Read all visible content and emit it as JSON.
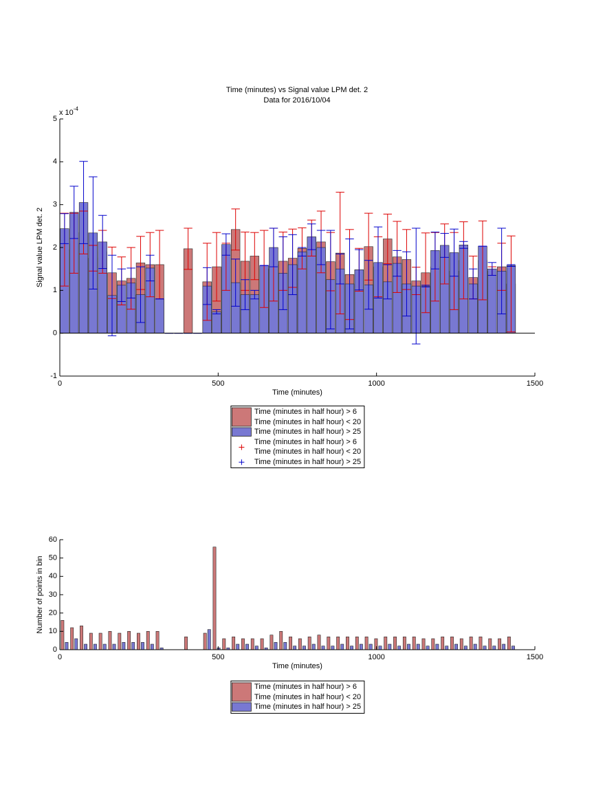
{
  "chart_data": [
    {
      "type": "bar",
      "barmode": "overlay",
      "title": "Time (minutes) vs Signal value LPM det. 2",
      "subtitle": "Data for 2016/10/04",
      "xlabel": "Time (minutes)",
      "ylabel": "Signal value LPM det. 2",
      "y_scale_label": "x 10",
      "y_scale_exponent": "-4",
      "x": [
        15,
        45,
        75,
        105,
        135,
        165,
        195,
        225,
        255,
        285,
        315,
        345,
        375,
        405,
        435,
        465,
        495,
        525,
        555,
        585,
        615,
        645,
        675,
        705,
        735,
        765,
        795,
        825,
        855,
        885,
        915,
        945,
        975,
        1005,
        1035,
        1065,
        1095,
        1125,
        1155,
        1185,
        1215,
        1245,
        1275,
        1305,
        1335,
        1365,
        1395,
        1425
      ],
      "xlim": [
        0,
        1500
      ],
      "xticks": [
        0,
        500,
        1000,
        1500
      ],
      "ylim": [
        -1,
        5
      ],
      "yticks": [
        -1,
        0,
        1,
        2,
        3,
        4,
        5
      ],
      "legend": "bottom-outside",
      "series": [
        {
          "name": "Time (minutes in half hour) > 6\nTime (minutes in half hour) < 20",
          "color": "#cc7878",
          "error_color": "#dd0000",
          "values": [
            1.95,
            2.1,
            2.35,
            1.75,
            1.9,
            1.41,
            1.22,
            1.28,
            1.64,
            1.6,
            1.6,
            null,
            null,
            1.97,
            null,
            1.2,
            1.55,
            1.55,
            2.42,
            1.68,
            1.8,
            1.5,
            1.6,
            1.68,
            1.75,
            1.98,
            2.22,
            2.13,
            1.67,
            1.87,
            1.37,
            1.48,
            2.02,
            1.55,
            2.2,
            1.78,
            1.72,
            1.22,
            1.41,
            1.55,
            1.85,
            1.45,
            1.7,
            1.3,
            1.7,
            1.45,
            1.55,
            1.15
          ],
          "errors": [
            0.85,
            0.7,
            0.5,
            0.3,
            0.5,
            0.6,
            0.56,
            0.72,
            0.62,
            0.75,
            0.8,
            null,
            null,
            0.48,
            null,
            0.9,
            0.8,
            0.55,
            0.48,
            0.68,
            0.55,
            0.9,
            0.85,
            0.68,
            0.68,
            0.48,
            0.42,
            0.72,
            0.68,
            1.42,
            1.05,
            0.5,
            0.78,
            0.7,
            0.58,
            0.83,
            0.7,
            0.32,
            0.93,
            0.8,
            0.7,
            0.9,
            0.9,
            0.5,
            0.92,
            0.1,
            0.55,
            1.12
          ]
        },
        {
          "name": "Time (minutes in half hour) > 25",
          "color": "#7878d2",
          "error_color": "#0000cc",
          "values": [
            2.44,
            2.82,
            3.05,
            2.34,
            2.13,
            0.88,
            1.12,
            1.17,
            0.9,
            1.52,
            0.8,
            0,
            0,
            0,
            0,
            1.1,
            0.5,
            2.07,
            1.18,
            0.9,
            0.9,
            1.58,
            2.0,
            1.4,
            1.6,
            1.9,
            2.25,
            2.0,
            1.25,
            1.5,
            1.15,
            1.48,
            1.13,
            1.65,
            1.2,
            1.63,
            1.15,
            1.1,
            1.1,
            1.93,
            2.05,
            1.88,
            2.06,
            1.15,
            2.03,
            1.5,
            1.45,
            1.58
          ],
          "errors": [
            0.35,
            0.61,
            0.96,
            1.31,
            0.62,
            0.94,
            0.38,
            0.35,
            0.65,
            0.3,
            0,
            0,
            0,
            0,
            0,
            0.43,
            0.05,
            0.25,
            0.55,
            0.35,
            0.1,
            0,
            0.45,
            0.85,
            0.7,
            0.1,
            0.3,
            0.4,
            1.15,
            0.35,
            1.05,
            0.47,
            0.57,
            0.83,
            0.4,
            0.3,
            0.75,
            1.35,
            0.02,
            0.43,
            0.28,
            0.55,
            0.08,
            0.35,
            0,
            0.15,
            1.0,
            0.02
          ]
        }
      ]
    },
    {
      "type": "bar",
      "barmode": "group",
      "xlabel": "Time (minutes)",
      "ylabel": "Number of points in bin",
      "x": [
        15,
        45,
        75,
        105,
        135,
        165,
        195,
        225,
        255,
        285,
        315,
        345,
        375,
        405,
        435,
        465,
        495,
        525,
        555,
        585,
        615,
        645,
        675,
        705,
        735,
        765,
        795,
        825,
        855,
        885,
        915,
        945,
        975,
        1005,
        1035,
        1065,
        1095,
        1125,
        1155,
        1185,
        1215,
        1245,
        1275,
        1305,
        1335,
        1365,
        1395,
        1425
      ],
      "xlim": [
        0,
        1500
      ],
      "xticks": [
        0,
        500,
        1000,
        1500
      ],
      "ylim": [
        0,
        60
      ],
      "yticks": [
        0,
        10,
        20,
        30,
        40,
        50,
        60
      ],
      "legend": "bottom-outside",
      "series": [
        {
          "name": "Time (minutes in half hour) > 6\nTime (minutes in half hour) < 20",
          "color": "#cc7878",
          "values": [
            16,
            12,
            13,
            9,
            9,
            10,
            9,
            10,
            9,
            10,
            10,
            0,
            0,
            7,
            0,
            9,
            56,
            6,
            7,
            6,
            6,
            6,
            8,
            10,
            7,
            6,
            7,
            8,
            7,
            7,
            7,
            7,
            7,
            6,
            7,
            7,
            7,
            7,
            6,
            6,
            7,
            7,
            6,
            7,
            7,
            6,
            6,
            7
          ]
        },
        {
          "name": "Time (minutes in half hour) > 25",
          "color": "#7878d2",
          "values": [
            4,
            6,
            3,
            3,
            3,
            3,
            4,
            4,
            4,
            3,
            1,
            0,
            0,
            0,
            0,
            11,
            1,
            1,
            3,
            3,
            2,
            1,
            4,
            4,
            2,
            2,
            3,
            2,
            2,
            3,
            2,
            3,
            3,
            2,
            3,
            2,
            3,
            3,
            2,
            3,
            2,
            3,
            2,
            3,
            2,
            2,
            3,
            2
          ]
        }
      ]
    }
  ]
}
